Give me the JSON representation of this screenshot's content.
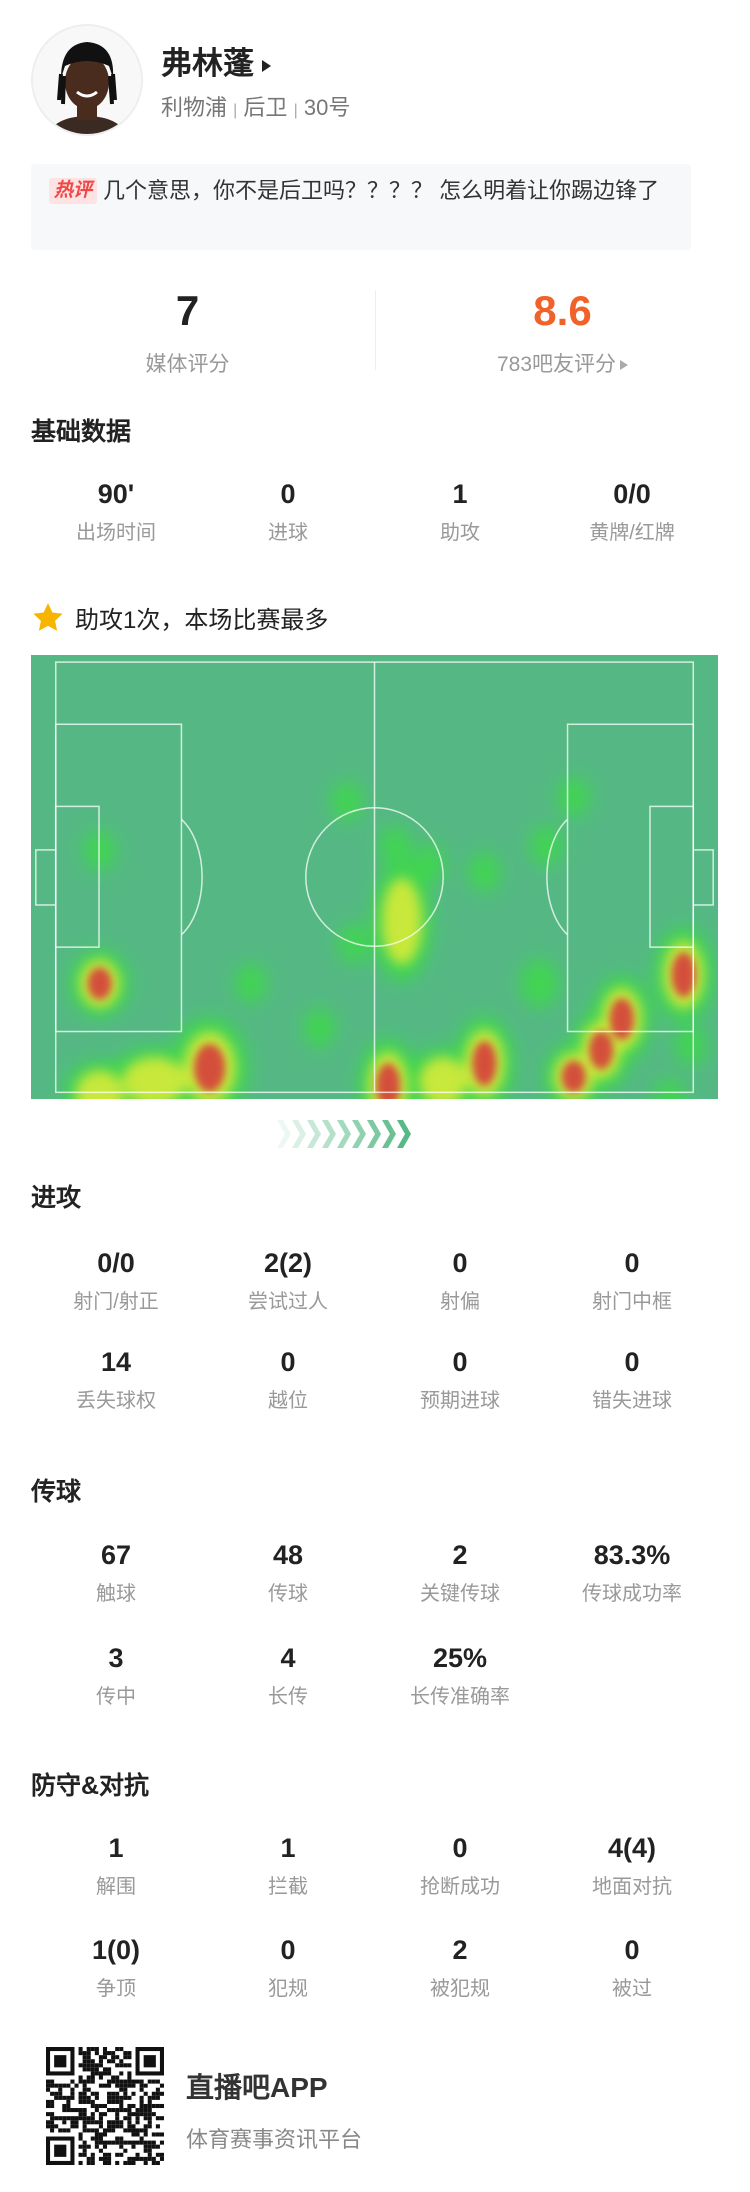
{
  "player": {
    "name": "弗林蓬",
    "team": "利物浦",
    "position": "后卫",
    "number": "30号",
    "separator": "|"
  },
  "comment": {
    "badge": "热评",
    "text": "几个意思，你不是后卫吗？？？？ 怎么明着让你踢边锋了"
  },
  "ratings": {
    "media_value": "7",
    "media_label": "媒体评分",
    "fan_value": "8.6",
    "fan_label": "783吧友评分",
    "fan_color": "#f0622a"
  },
  "basic": {
    "title": "基础数据",
    "items": [
      {
        "value": "90'",
        "label": "出场时间"
      },
      {
        "value": "0",
        "label": "进球"
      },
      {
        "value": "1",
        "label": "助攻"
      },
      {
        "value": "0/0",
        "label": "黄牌/红牌"
      }
    ]
  },
  "highlight": {
    "icon": "star-icon",
    "text": "助攻1次，本场比赛最多",
    "color": "#f7b500"
  },
  "heatmap": {
    "pitch_color": "#55b884",
    "direction_icon": "chevron-right-icon"
  },
  "attack": {
    "title": "进攻",
    "items": [
      {
        "value": "0/0",
        "label": "射门/射正"
      },
      {
        "value": "2(2)",
        "label": "尝试过人"
      },
      {
        "value": "0",
        "label": "射偏"
      },
      {
        "value": "0",
        "label": "射门中框"
      },
      {
        "value": "14",
        "label": "丢失球权"
      },
      {
        "value": "0",
        "label": "越位"
      },
      {
        "value": "0",
        "label": "预期进球"
      },
      {
        "value": "0",
        "label": "错失进球"
      }
    ]
  },
  "passing": {
    "title": "传球",
    "items": [
      {
        "value": "67",
        "label": "触球"
      },
      {
        "value": "48",
        "label": "传球"
      },
      {
        "value": "2",
        "label": "关键传球"
      },
      {
        "value": "83.3%",
        "label": "传球成功率"
      },
      {
        "value": "3",
        "label": "传中"
      },
      {
        "value": "4",
        "label": "长传"
      },
      {
        "value": "25%",
        "label": "长传准确率"
      }
    ]
  },
  "defense": {
    "title": "防守&对抗",
    "items": [
      {
        "value": "1",
        "label": "解围"
      },
      {
        "value": "1",
        "label": "拦截"
      },
      {
        "value": "0",
        "label": "抢断成功"
      },
      {
        "value": "4(4)",
        "label": "地面对抗"
      },
      {
        "value": "1(0)",
        "label": "争顶"
      },
      {
        "value": "0",
        "label": "犯规"
      },
      {
        "value": "2",
        "label": "被犯规"
      },
      {
        "value": "0",
        "label": "被过"
      }
    ]
  },
  "footer": {
    "app_name": "直播吧APP",
    "tagline": "体育赛事资讯平台"
  }
}
